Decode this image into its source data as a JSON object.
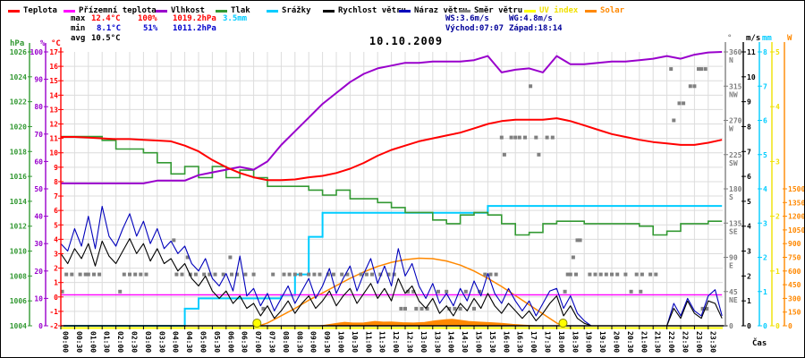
{
  "title": "10.10.2009",
  "xlabel": "Čas",
  "legend": {
    "items": [
      {
        "label": "Teplota",
        "color": "#ff0000",
        "text_color": "#000000"
      },
      {
        "label": "Přízemní teplota",
        "color": "#ff00ff",
        "text_color": "#000000"
      },
      {
        "label": "Vlhkost",
        "color": "#9900cc",
        "text_color": "#000000"
      },
      {
        "label": "Tlak",
        "color": "#339933",
        "text_color": "#000000"
      },
      {
        "label": "Srážky",
        "color": "#00ccff",
        "text_color": "#000000"
      },
      {
        "label": "Rychlost větru",
        "color": "#000000",
        "text_color": "#000000"
      },
      {
        "label": "Náraz větru",
        "color": "#0000bb",
        "text_color": "#000000"
      },
      {
        "label": "Směr větru",
        "color": "#808080",
        "text_color": "#000000"
      },
      {
        "label": "UV index",
        "color": "#ffff00",
        "text_color": "#f0e000"
      },
      {
        "label": "Solar",
        "color": "#ff8800",
        "text_color": "#ff8800"
      }
    ]
  },
  "stats": {
    "max_row": [
      {
        "text": "max",
        "color": "#000000",
        "x": 78
      },
      {
        "text": "12.4°C",
        "color": "#ff0000",
        "x": 101
      },
      {
        "text": "100%",
        "color": "#ff0000",
        "x": 153
      },
      {
        "text": "1019.2hPa",
        "color": "#ff0000",
        "x": 192
      },
      {
        "text": "3.5mm",
        "color": "#00ccff",
        "x": 248
      }
    ],
    "min_row": [
      {
        "text": "min",
        "color": "#000000",
        "x": 78
      },
      {
        "text": "8.1°C",
        "color": "#0000cc",
        "x": 107
      },
      {
        "text": "51%",
        "color": "#0000cc",
        "x": 159
      },
      {
        "text": "1011.2hPa",
        "color": "#0000cc",
        "x": 192
      }
    ],
    "avg_row": [
      {
        "text": "avg",
        "color": "#000000",
        "x": 78
      },
      {
        "text": "10.5°C",
        "color": "#000000",
        "x": 101
      }
    ],
    "ws": "WS:3.6m/s",
    "wg": "WG:4.8m/s",
    "sunrise": "Východ:07:07",
    "sunset": "Západ:18:14",
    "wind_stats_color": "#000099"
  },
  "axes": {
    "left": [
      {
        "unit": "hPa",
        "color": "#339933",
        "min": 1004,
        "max": 1026,
        "step": 2
      },
      {
        "unit": "%",
        "color": "#9900cc",
        "min": 0,
        "max": 100,
        "step": 10
      },
      {
        "unit": "°C",
        "color": "#ff0000",
        "min": -2,
        "max": 17,
        "step": 1
      }
    ],
    "right": [
      {
        "unit": "°",
        "color": "#808080",
        "min": 0,
        "max": 360,
        "step": 45,
        "names": {
          "45": "NE",
          "90": "E",
          "135": "SE",
          "180": "S",
          "225": "SW",
          "270": "W",
          "315": "NW",
          "360": "N"
        }
      },
      {
        "unit": "m/s",
        "color": "#000000",
        "min": 0,
        "max": 11,
        "step": 1
      },
      {
        "unit": "mm",
        "color": "#00ccff",
        "min": 0,
        "max": 8,
        "step": 1
      },
      {
        "unit": "",
        "color": "#f0e000",
        "min": 0,
        "max": 5,
        "step": 1
      },
      {
        "unit": "W",
        "color": "#ff8800",
        "min": 0,
        "max": 1500,
        "step": 150
      }
    ]
  },
  "x_axis": {
    "labels": [
      "00:00",
      "00:30",
      "01:00",
      "01:30",
      "02:00",
      "02:30",
      "03:00",
      "03:30",
      "04:00",
      "04:30",
      "05:00",
      "05:30",
      "06:00",
      "06:30",
      "07:00",
      "07:30",
      "08:00",
      "08:30",
      "09:00",
      "09:30",
      "10:00",
      "10:30",
      "11:00",
      "11:30",
      "12:00",
      "12:30",
      "13:00",
      "13:30",
      "14:00",
      "14:30",
      "15:00",
      "15:30",
      "16:00",
      "16:30",
      "17:00",
      "17:30",
      "18:00",
      "18:30",
      "19:00",
      "19:30",
      "20:00",
      "20:30",
      "21:00",
      "21:30",
      "22:00",
      "22:30",
      "23:00",
      "23:30"
    ]
  },
  "chart_data": {
    "type": "line",
    "title": "10.10.2009",
    "x_unit": "hours 0-24",
    "series": [
      {
        "name": "teplota",
        "unit": "°C",
        "color": "#ff0000",
        "interval_h": 0.5,
        "style": "line",
        "values": [
          11.1,
          11.1,
          11.05,
          11.0,
          10.95,
          10.95,
          10.9,
          10.85,
          10.8,
          10.5,
          10.1,
          9.5,
          9.0,
          8.6,
          8.3,
          8.1,
          8.1,
          8.15,
          8.3,
          8.4,
          8.6,
          8.9,
          9.3,
          9.8,
          10.2,
          10.5,
          10.8,
          11.0,
          11.2,
          11.4,
          11.7,
          12.0,
          12.2,
          12.3,
          12.3,
          12.3,
          12.4,
          12.2,
          11.9,
          11.6,
          11.3,
          11.1,
          10.9,
          10.75,
          10.65,
          10.55,
          10.55,
          10.7,
          10.9
        ]
      },
      {
        "name": "prizemni_teplota",
        "unit": "°C",
        "color": "#ff00ff",
        "style": "line",
        "points": [
          [
            0,
            0.15
          ],
          [
            24,
            0.15
          ]
        ]
      },
      {
        "name": "vlhkost",
        "unit": "%",
        "color": "#9900cc",
        "interval_h": 0.5,
        "style": "line",
        "values": [
          52,
          52,
          52,
          52,
          52,
          52,
          52,
          53,
          53,
          53,
          55,
          56,
          57,
          58,
          57,
          60,
          66,
          71,
          76,
          81,
          85,
          89,
          92,
          94,
          95,
          96,
          96,
          96.5,
          96.5,
          96.5,
          97,
          98.5,
          92.5,
          93.5,
          94,
          92.5,
          98.5,
          95.5,
          95.5,
          96,
          96.5,
          96.5,
          97,
          97.5,
          98.5,
          97.5,
          99,
          99.8,
          100
        ]
      },
      {
        "name": "tlak",
        "unit": "hPa",
        "color": "#339933",
        "interval_h": 0.5,
        "style": "step",
        "values": [
          1019.2,
          1019.2,
          1019.2,
          1018.9,
          1018.2,
          1018.2,
          1017.9,
          1017.1,
          1016.2,
          1016.8,
          1015.9,
          1016.8,
          1015.9,
          1016.5,
          1015.9,
          1015.2,
          1015.2,
          1015.2,
          1014.9,
          1014.5,
          1014.9,
          1014.2,
          1014.2,
          1013.9,
          1013.5,
          1013.1,
          1013.1,
          1012.5,
          1012.2,
          1012.9,
          1013.1,
          1012.9,
          1012.2,
          1011.3,
          1011.5,
          1012.2,
          1012.4,
          1012.4,
          1012.2,
          1012.2,
          1012.2,
          1012.2,
          1012.0,
          1011.3,
          1011.6,
          1012.2,
          1012.2,
          1012.4,
          1012.4
        ]
      },
      {
        "name": "srazky",
        "unit": "mm",
        "color": "#00ccff",
        "interval_h": 0.5,
        "style": "step",
        "values": [
          0,
          0,
          0,
          0,
          0,
          0,
          0,
          0,
          0,
          0.5,
          0.8,
          0.8,
          0.8,
          0.8,
          0.8,
          0.8,
          0.9,
          1.5,
          2.6,
          3.3,
          3.3,
          3.3,
          3.3,
          3.3,
          3.3,
          3.3,
          3.3,
          3.3,
          3.3,
          3.3,
          3.3,
          3.5,
          3.5,
          3.5,
          3.5,
          3.5,
          3.5,
          3.5,
          3.5,
          3.5,
          3.5,
          3.5,
          3.5,
          3.5,
          3.5,
          3.5,
          3.5,
          3.5,
          3.5
        ]
      },
      {
        "name": "rychlost_vetru",
        "unit": "m/s",
        "color": "#000000",
        "interval_h": 0.25,
        "style": "line",
        "values": [
          2.9,
          2.5,
          3.1,
          2.7,
          3.3,
          2.4,
          3.4,
          2.8,
          2.5,
          3.0,
          3.5,
          2.9,
          3.3,
          2.6,
          3.1,
          2.5,
          2.7,
          2.2,
          2.5,
          1.9,
          1.6,
          2.0,
          1.4,
          1.1,
          1.4,
          0.9,
          1.2,
          0.7,
          0.9,
          0.4,
          0.8,
          0.3,
          0.6,
          1.0,
          0.5,
          0.9,
          1.2,
          0.7,
          1.0,
          1.4,
          0.8,
          1.2,
          1.5,
          0.9,
          1.3,
          1.7,
          1.1,
          1.5,
          1.0,
          1.9,
          1.3,
          1.6,
          1.0,
          0.7,
          1.1,
          0.5,
          0.8,
          0.4,
          0.9,
          0.6,
          1.1,
          0.7,
          1.3,
          0.8,
          0.5,
          0.9,
          0.6,
          0.3,
          0.6,
          0.2,
          0.5,
          0.9,
          1.2,
          0.4,
          0.8,
          0.3,
          0.1,
          0.0,
          0.0,
          0.0,
          0.0,
          0.0,
          0.0,
          0.0,
          0.0,
          0.0,
          0.0,
          0.0,
          0.0,
          0.7,
          0.3,
          1.0,
          0.5,
          0.3,
          1.0,
          0.9,
          0.3
        ]
      },
      {
        "name": "naraz_vetru",
        "unit": "m/s",
        "color": "#0000bb",
        "interval_h": 0.25,
        "style": "line",
        "values": [
          3.3,
          3.0,
          3.9,
          3.2,
          4.4,
          3.1,
          4.8,
          3.6,
          3.2,
          3.9,
          4.5,
          3.6,
          4.2,
          3.3,
          3.9,
          3.1,
          3.4,
          2.9,
          3.2,
          2.5,
          2.2,
          2.7,
          1.9,
          1.6,
          2.1,
          1.4,
          2.8,
          1.2,
          1.5,
          0.8,
          1.3,
          0.6,
          1.1,
          1.6,
          0.9,
          1.4,
          1.9,
          1.1,
          1.6,
          2.3,
          1.3,
          1.9,
          2.4,
          1.4,
          2.1,
          2.7,
          1.7,
          2.4,
          1.6,
          3.1,
          2.0,
          2.5,
          1.6,
          1.1,
          1.7,
          0.9,
          1.3,
          0.8,
          1.5,
          1.0,
          1.8,
          1.2,
          2.1,
          1.3,
          0.9,
          1.5,
          1.0,
          0.6,
          1.0,
          0.4,
          0.9,
          1.4,
          1.5,
          0.7,
          1.2,
          0.5,
          0.2,
          0.0,
          0.0,
          0.0,
          0.0,
          0.0,
          0.0,
          0.0,
          0.0,
          0.0,
          0.0,
          0.0,
          0.0,
          0.9,
          0.4,
          1.1,
          0.6,
          0.4,
          1.2,
          1.45,
          0.4
        ]
      },
      {
        "name": "uv_index",
        "unit": "UV",
        "color": "#ffff00",
        "style": "line",
        "points": [
          [
            0,
            0
          ],
          [
            24,
            0
          ]
        ]
      },
      {
        "name": "solar_model",
        "unit": "W",
        "color": "#ff8800",
        "style": "line",
        "points": [
          [
            7.2,
            0
          ],
          [
            7.5,
            30
          ],
          [
            8,
            110
          ],
          [
            8.5,
            190
          ],
          [
            9,
            280
          ],
          [
            9.5,
            360
          ],
          [
            10,
            440
          ],
          [
            10.5,
            520
          ],
          [
            11,
            590
          ],
          [
            11.5,
            650
          ],
          [
            12,
            695
          ],
          [
            12.5,
            725
          ],
          [
            13,
            740
          ],
          [
            13.5,
            735
          ],
          [
            14,
            710
          ],
          [
            14.5,
            665
          ],
          [
            15,
            600
          ],
          [
            15.5,
            520
          ],
          [
            16,
            430
          ],
          [
            16.5,
            330
          ],
          [
            17,
            230
          ],
          [
            17.5,
            130
          ],
          [
            18,
            30
          ],
          [
            18.2,
            0
          ]
        ]
      },
      {
        "name": "solar_measured",
        "unit": "W",
        "color": "#ff8800",
        "style": "area",
        "points": [
          [
            9.4,
            0
          ],
          [
            9.6,
            8
          ],
          [
            10,
            25
          ],
          [
            10.3,
            38
          ],
          [
            10.6,
            30
          ],
          [
            11,
            32
          ],
          [
            11.4,
            48
          ],
          [
            11.7,
            40
          ],
          [
            12,
            42
          ],
          [
            12.4,
            34
          ],
          [
            12.8,
            30
          ],
          [
            13.2,
            36
          ],
          [
            13.6,
            55
          ],
          [
            14,
            68
          ],
          [
            14.2,
            72
          ],
          [
            14.5,
            60
          ],
          [
            14.8,
            48
          ],
          [
            15.2,
            40
          ],
          [
            15.6,
            34
          ],
          [
            16,
            26
          ],
          [
            16.4,
            16
          ],
          [
            16.8,
            8
          ],
          [
            17.1,
            3
          ],
          [
            17.3,
            0
          ]
        ]
      },
      {
        "name": "smer_vetru",
        "unit": "°",
        "color": "#808080",
        "style": "squares",
        "groups": [
          {
            "deg": 67.5,
            "compass": "ENE",
            "times": [
              0.2,
              0.4,
              0.7,
              0.9,
              1.0,
              1.2,
              1.4,
              2.3,
              2.5,
              2.7,
              2.9,
              3.1,
              4.2,
              4.4,
              4.7,
              4.9,
              5.2,
              5.4,
              5.6,
              5.9,
              6.2,
              6.4,
              6.7,
              7.0,
              7.7,
              8.1,
              8.3,
              8.5,
              8.7,
              9.0,
              9.2,
              9.4,
              9.7,
              9.9,
              10.2,
              10.4,
              10.9,
              11.1,
              11.3,
              11.6,
              11.9,
              12.1,
              15.4,
              15.6,
              15.8,
              18.4,
              18.5,
              18.7,
              19.2,
              19.4,
              19.6,
              19.8,
              20.0,
              20.2,
              20.5,
              20.9,
              21.1,
              21.4,
              21.6
            ]
          },
          {
            "deg": 45,
            "compass": "NE",
            "times": [
              0.05,
              2.15,
              12.6,
              12.8,
              13.7,
              14.0,
              14.7,
              15.2,
              18.3,
              20.7,
              21.05
            ]
          },
          {
            "deg": 22.5,
            "compass": "NNE",
            "times": [
              7.35,
              12.35,
              12.5,
              12.9,
              13.1,
              13.3,
              14.1,
              14.3,
              14.5,
              15.0,
              23.3,
              23.45
            ]
          },
          {
            "deg": 90,
            "compass": "E",
            "times": [
              4.6,
              6.15,
              18.6
            ]
          },
          {
            "deg": 112.5,
            "compass": "ESE",
            "times": [
              4.1,
              18.75,
              18.85
            ]
          },
          {
            "deg": 247.5,
            "compass": "WSW",
            "times": [
              16.0,
              16.35,
              16.5,
              16.65,
              16.85,
              17.25,
              17.65,
              17.85
            ]
          },
          {
            "deg": 225,
            "compass": "SW",
            "times": [
              16.1,
              17.35
            ]
          },
          {
            "deg": 270,
            "compass": "W",
            "times": [
              22.25
            ]
          },
          {
            "deg": 292.5,
            "compass": "WNW",
            "times": [
              22.45,
              22.6
            ]
          },
          {
            "deg": 315,
            "compass": "NW",
            "times": [
              17.05,
              22.85,
              23.0
            ]
          },
          {
            "deg": 337.5,
            "compass": "NNW",
            "times": [
              22.15,
              23.15,
              23.25,
              23.4
            ]
          }
        ]
      }
    ],
    "sun_markers": {
      "sunrise_h": 7.12,
      "sunset_h": 18.23,
      "fill": "#ffff00",
      "stroke": "#888800"
    },
    "grid": true,
    "grid_color": "#dcdcdc"
  }
}
